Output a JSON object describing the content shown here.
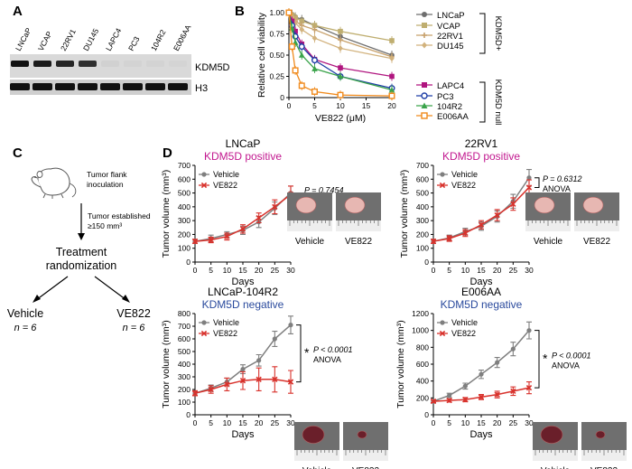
{
  "panel_letters": {
    "a": "A",
    "b": "B",
    "c": "C",
    "d": "D"
  },
  "blot": {
    "lanes": [
      "LNCaP",
      "VCAP",
      "22RV1",
      "DU145",
      "LAPC4",
      "PC3",
      "104R2",
      "E006AA"
    ],
    "kdm5d_label": "KDM5D",
    "h3_label": "H3"
  },
  "scheme": {
    "inoculation": [
      "Tumor flank",
      "inoculation"
    ],
    "established": [
      "Tumor established",
      "≥150 mm³"
    ],
    "treatment": [
      "Treatment",
      "randomization"
    ],
    "arm1": {
      "name": "Vehicle",
      "n": "n = 6"
    },
    "arm2": {
      "name": "VE822",
      "n": "n = 6"
    }
  },
  "photo_labels": {
    "vehicle": "Vehicle",
    "ve822": "VE822"
  },
  "colors": {
    "vehicle": "#7f7f7f",
    "ve822": "#d8322c",
    "positive": "#c2188f",
    "negative": "#2a4a9d"
  },
  "chart_data": [
    {
      "type": "line",
      "id": "viability",
      "xlabel": "VE822 (μM)",
      "ylabel": "Relative cell viability",
      "xlim": [
        0,
        20
      ],
      "ylim": [
        0,
        1
      ],
      "xticks": [
        0,
        5,
        10,
        15,
        20
      ],
      "yticks": [
        0,
        0.25,
        0.5,
        0.75,
        1.0
      ],
      "ytick_labels": [
        "0",
        "0.25",
        "0.50",
        "0.75",
        "1.00"
      ],
      "x": [
        0,
        0.6,
        1.25,
        2.5,
        5,
        10,
        20
      ],
      "group_labels": [
        "KDM5D+",
        "KDM5D null"
      ],
      "series": [
        {
          "name": "LNCaP",
          "group": 0,
          "color": "#6e6e6e",
          "marker": "circle-filled",
          "values": [
            1.0,
            0.98,
            0.95,
            0.92,
            0.85,
            0.72,
            0.5
          ]
        },
        {
          "name": "VCAP",
          "group": 0,
          "color": "#bfae70",
          "marker": "square-filled",
          "values": [
            1.0,
            0.97,
            0.94,
            0.9,
            0.85,
            0.78,
            0.67
          ]
        },
        {
          "name": "22RV1",
          "group": 0,
          "color": "#c7a06a",
          "marker": "plus",
          "values": [
            1.0,
            0.96,
            0.9,
            0.85,
            0.8,
            0.68,
            0.48
          ]
        },
        {
          "name": "DU145",
          "group": 0,
          "color": "#d2b27d",
          "marker": "diamond",
          "values": [
            1.0,
            0.95,
            0.88,
            0.8,
            0.7,
            0.58,
            0.46
          ]
        },
        {
          "name": "LAPC4",
          "group": 1,
          "color": "#b0157f",
          "marker": "square-filled",
          "values": [
            1.0,
            0.9,
            0.78,
            0.63,
            0.45,
            0.35,
            0.25
          ]
        },
        {
          "name": "PC3",
          "group": 1,
          "color": "#1f3fa6",
          "marker": "circle-open",
          "values": [
            1.0,
            0.85,
            0.72,
            0.6,
            0.44,
            0.25,
            0.11
          ]
        },
        {
          "name": "104R2",
          "group": 1,
          "color": "#3aa34a",
          "marker": "triangle",
          "values": [
            1.0,
            0.82,
            0.65,
            0.5,
            0.34,
            0.25,
            0.09
          ]
        },
        {
          "name": "E006AA",
          "group": 1,
          "color": "#f08a1c",
          "marker": "square-open",
          "values": [
            1.0,
            0.6,
            0.32,
            0.14,
            0.07,
            0.03,
            0.02
          ]
        }
      ]
    },
    {
      "type": "line",
      "id": "lncap",
      "title": "LNCaP",
      "subtitle": "KDM5D positive",
      "subtitle_color": "positive",
      "xlabel": "Days",
      "ylabel": "Tumor volume (mm³)",
      "xlim": [
        0,
        30
      ],
      "ylim": [
        0,
        700
      ],
      "xticks": [
        0,
        5,
        10,
        15,
        20,
        25,
        30
      ],
      "yticks": [
        0,
        100,
        200,
        300,
        400,
        500,
        600,
        700
      ],
      "x": [
        0,
        5,
        10,
        15,
        20,
        25,
        30
      ],
      "series": [
        {
          "name": "Vehicle",
          "values": [
            150,
            170,
            200,
            230,
            290,
            390,
            500
          ],
          "err": [
            15,
            25,
            20,
            30,
            40,
            45,
            50
          ]
        },
        {
          "name": "VE822",
          "values": [
            150,
            160,
            185,
            240,
            320,
            400,
            490
          ],
          "err": [
            15,
            20,
            25,
            30,
            35,
            50,
            60
          ]
        }
      ],
      "stats": {
        "p": "P = 0.7454",
        "test": "ANOVA",
        "star": ""
      },
      "photo_pos": "right"
    },
    {
      "type": "line",
      "id": "22rv1",
      "title": "22RV1",
      "subtitle": "KDM5D positive",
      "subtitle_color": "positive",
      "xlabel": "Days",
      "ylabel": "Tumor volume (mm³)",
      "xlim": [
        0,
        30
      ],
      "ylim": [
        0,
        700
      ],
      "xticks": [
        0,
        5,
        10,
        15,
        20,
        25,
        30
      ],
      "yticks": [
        0,
        100,
        200,
        300,
        400,
        500,
        600,
        700
      ],
      "x": [
        0,
        5,
        10,
        15,
        20,
        25,
        30
      ],
      "series": [
        {
          "name": "Vehicle",
          "values": [
            150,
            175,
            220,
            260,
            330,
            440,
            610
          ],
          "err": [
            15,
            20,
            25,
            30,
            40,
            50,
            60
          ]
        },
        {
          "name": "VE822",
          "values": [
            150,
            170,
            210,
            270,
            340,
            420,
            540
          ],
          "err": [
            15,
            20,
            25,
            30,
            40,
            45,
            55
          ]
        }
      ],
      "stats": {
        "p": "P = 0.6312",
        "test": "ANOVA",
        "star": ""
      },
      "photo_pos": "right"
    },
    {
      "type": "line",
      "id": "104r2",
      "title": "LNCaP-104R2",
      "subtitle": "KDM5D negative",
      "subtitle_color": "negative",
      "xlabel": "Days",
      "ylabel": "Tumor volume (mm³)",
      "xlim": [
        0,
        30
      ],
      "ylim": [
        0,
        800
      ],
      "xticks": [
        0,
        5,
        10,
        15,
        20,
        25,
        30
      ],
      "yticks": [
        0,
        100,
        200,
        300,
        400,
        500,
        600,
        700,
        800
      ],
      "x": [
        0,
        5,
        10,
        15,
        20,
        25,
        30
      ],
      "series": [
        {
          "name": "Vehicle",
          "values": [
            170,
            210,
            260,
            360,
            430,
            600,
            710
          ],
          "err": [
            20,
            25,
            30,
            35,
            45,
            60,
            70
          ]
        },
        {
          "name": "VE822",
          "values": [
            170,
            200,
            240,
            270,
            280,
            280,
            260
          ],
          "err": [
            20,
            30,
            50,
            70,
            90,
            100,
            90
          ]
        }
      ],
      "stats": {
        "p": "P < 0.0001",
        "test": "ANOVA",
        "star": "*"
      },
      "photo_pos": "below"
    },
    {
      "type": "line",
      "id": "e006aa",
      "title": "E006AA",
      "subtitle": "KDM5D negative",
      "subtitle_color": "negative",
      "xlabel": "Days",
      "ylabel": "Tumor volume (mm³)",
      "xlim": [
        0,
        30
      ],
      "ylim": [
        0,
        1200
      ],
      "xticks": [
        0,
        5,
        10,
        15,
        20,
        25,
        30
      ],
      "yticks": [
        0,
        200,
        400,
        600,
        800,
        1000,
        1200
      ],
      "x": [
        0,
        5,
        10,
        15,
        20,
        25,
        30
      ],
      "series": [
        {
          "name": "Vehicle",
          "values": [
            160,
            230,
            340,
            480,
            620,
            780,
            1000
          ],
          "err": [
            15,
            25,
            35,
            50,
            60,
            80,
            100
          ]
        },
        {
          "name": "VE822",
          "values": [
            160,
            170,
            180,
            210,
            240,
            280,
            320
          ],
          "err": [
            15,
            20,
            25,
            30,
            40,
            50,
            70
          ]
        }
      ],
      "stats": {
        "p": "P < 0.0001",
        "test": "ANOVA",
        "star": "*"
      },
      "photo_pos": "below"
    }
  ]
}
